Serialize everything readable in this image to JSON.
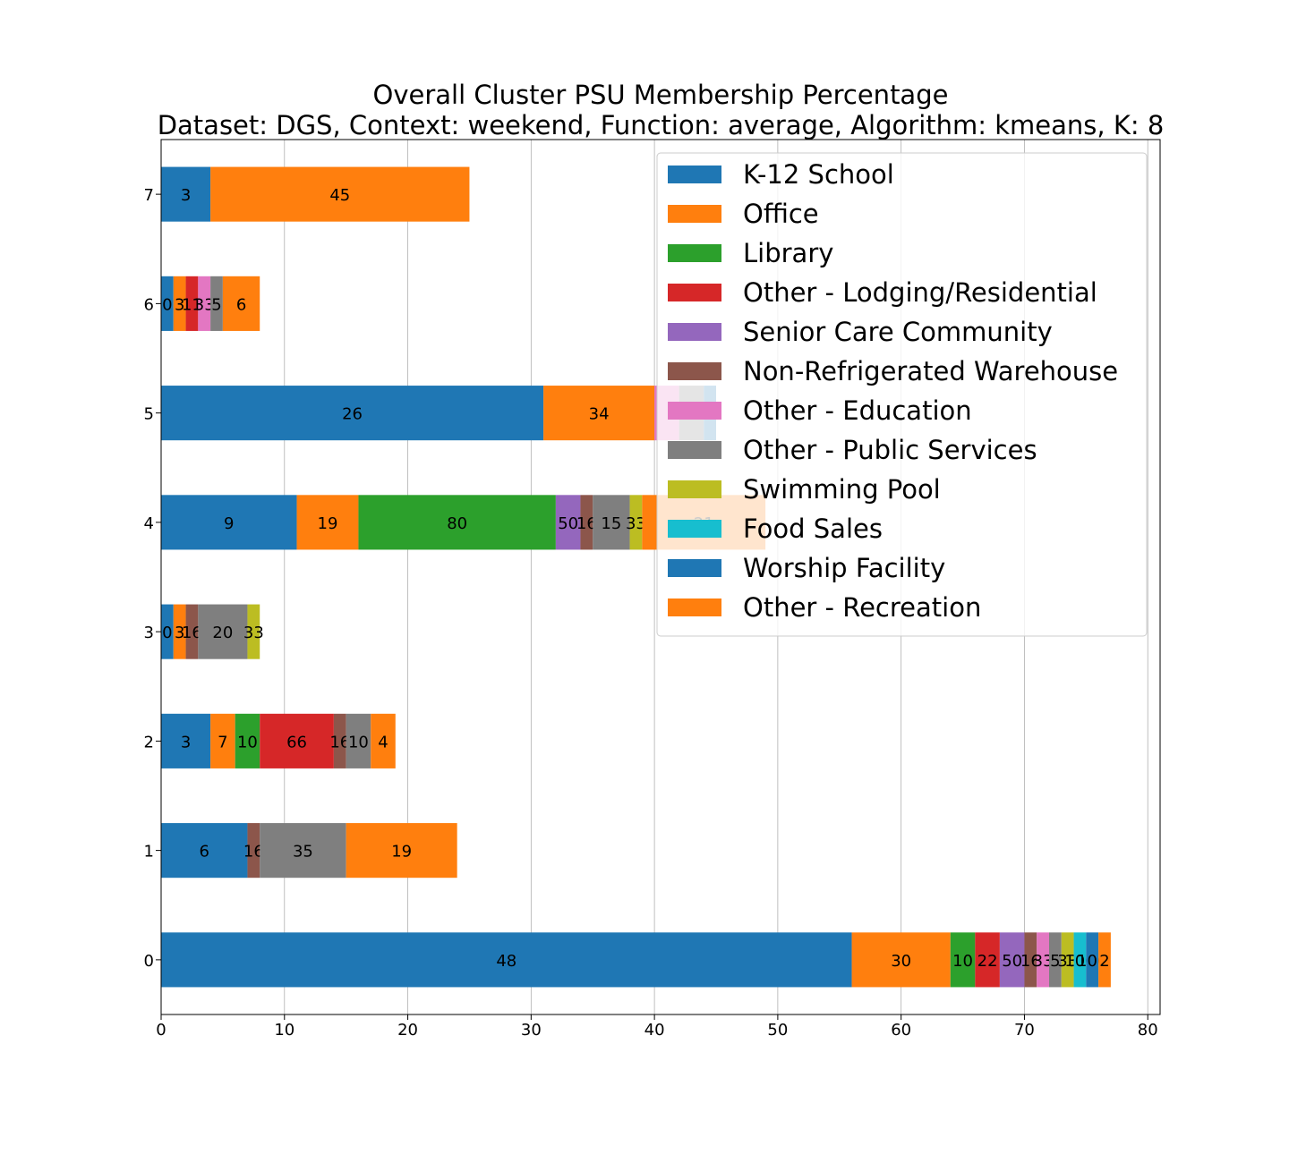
{
  "chart_data": {
    "type": "bar",
    "orientation": "horizontal",
    "stacked": true,
    "title_line1": "Overall Cluster  PSU Membership Percentage",
    "title_line2": "Dataset: DGS, Context: weekend, Function: average, Algorithm: kmeans, K: 8",
    "xlabel": "",
    "ylabel": "",
    "xlim": [
      0,
      81
    ],
    "x_ticks": [
      0,
      10,
      20,
      30,
      40,
      50,
      60,
      70,
      80
    ],
    "grid": "vertical",
    "legend_position": "upper right",
    "categories": [
      "0",
      "1",
      "2",
      "3",
      "4",
      "5",
      "6",
      "7"
    ],
    "series": [
      {
        "name": "K-12 School",
        "color": "#1f77b4",
        "values": [
          56,
          7,
          4,
          1,
          11,
          31,
          1,
          4
        ],
        "labels": [
          "48",
          "6",
          "3",
          "0",
          "9",
          "26",
          "0",
          "3"
        ]
      },
      {
        "name": "Office",
        "color": "#ff7f0e",
        "values": [
          8,
          0,
          2,
          1,
          5,
          9,
          1,
          21
        ],
        "labels": [
          "30",
          "",
          "7",
          "3",
          "19",
          "34",
          "3",
          "45"
        ]
      },
      {
        "name": "Library",
        "color": "#2ca02c",
        "values": [
          2,
          0,
          2,
          0,
          16,
          0,
          0,
          0
        ],
        "labels": [
          "10",
          "",
          "10",
          "",
          "80",
          "",
          "",
          ""
        ]
      },
      {
        "name": "Other - Lodging/Residential",
        "color": "#d62728",
        "values": [
          2,
          0,
          6,
          0,
          0,
          0,
          1,
          0
        ],
        "labels": [
          "22",
          "",
          "66",
          "",
          "",
          "",
          "11",
          ""
        ]
      },
      {
        "name": "Senior Care Community",
        "color": "#9467bd",
        "values": [
          2,
          0,
          0,
          0,
          2,
          0,
          0,
          0
        ],
        "labels": [
          "50",
          "",
          "",
          "",
          "50",
          "",
          "",
          ""
        ]
      },
      {
        "name": "Non-Refrigerated Warehouse",
        "color": "#8c564b",
        "values": [
          1,
          1,
          1,
          1,
          1,
          0,
          0,
          0
        ],
        "labels": [
          "16",
          "16",
          "16",
          "16",
          "16",
          "",
          "",
          ""
        ]
      },
      {
        "name": "Other - Education",
        "color": "#e377c2",
        "values": [
          1,
          0,
          0,
          0,
          0,
          2,
          1,
          0
        ],
        "labels": [
          "33",
          "",
          "",
          "",
          "",
          "",
          "33",
          ""
        ]
      },
      {
        "name": "Other - Public Services",
        "color": "#7f7f7f",
        "values": [
          1,
          7,
          2,
          4,
          3,
          2,
          1,
          0
        ],
        "labels": [
          "5",
          "35",
          "10",
          "20",
          "15",
          "",
          "5",
          ""
        ]
      },
      {
        "name": "Swimming Pool",
        "color": "#bcbd22",
        "values": [
          1,
          0,
          0,
          1,
          1,
          0,
          0,
          0
        ],
        "labels": [
          "33",
          "",
          "",
          "33",
          "33",
          "",
          "",
          ""
        ]
      },
      {
        "name": "Food Sales",
        "color": "#17becf",
        "values": [
          1,
          0,
          0,
          0,
          0,
          0,
          0,
          0
        ],
        "labels": [
          "100",
          "",
          "",
          "",
          "",
          "",
          "",
          ""
        ]
      },
      {
        "name": "Worship Facility",
        "color": "#1f77b4",
        "values": [
          1,
          0,
          0,
          0,
          0,
          1,
          0,
          0
        ],
        "labels": [
          "100",
          "",
          "",
          "",
          "",
          "16",
          "",
          ""
        ]
      },
      {
        "name": "Other - Recreation",
        "color": "#ff7f0e",
        "values": [
          1,
          9,
          2,
          0,
          10,
          0,
          3,
          0
        ],
        "labels": [
          "2",
          "19",
          "4",
          "",
          "21",
          "",
          "6",
          ""
        ]
      }
    ]
  }
}
